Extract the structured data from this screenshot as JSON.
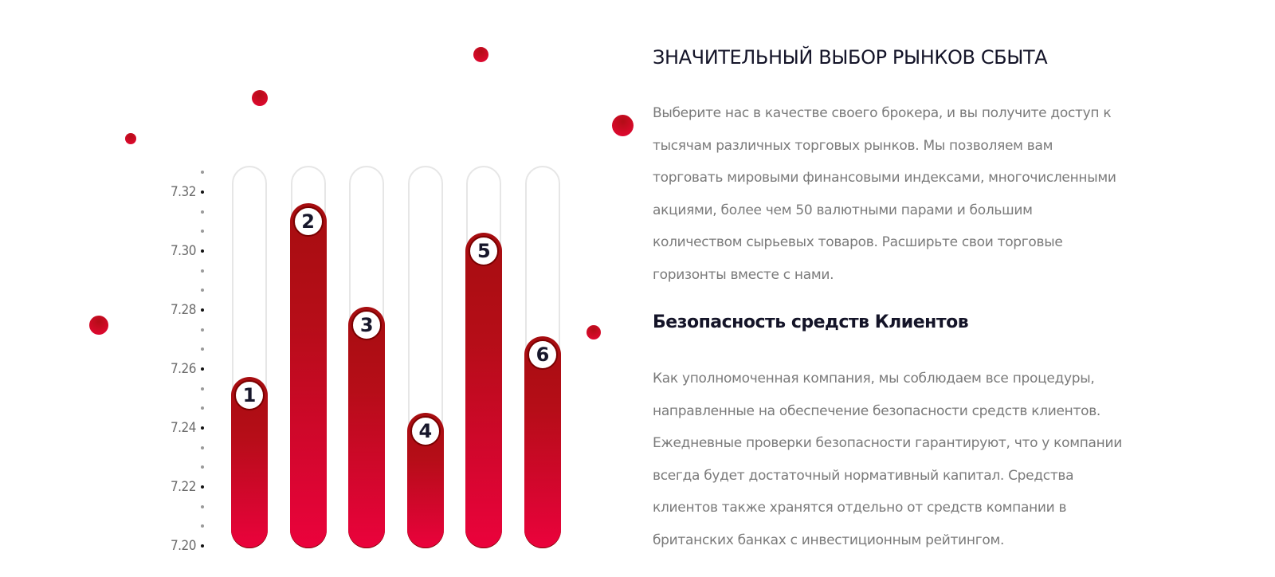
{
  "chart_data": {
    "type": "bar",
    "title": "",
    "xlabel": "",
    "ylabel": "",
    "categories": [
      "1",
      "2",
      "3",
      "4",
      "5",
      "6"
    ],
    "values": [
      7.251,
      7.31,
      7.275,
      7.239,
      7.3,
      7.265
    ],
    "ylim": [
      7.2,
      7.33
    ],
    "y_ticks": [
      "7.32",
      "7.30",
      "7.28",
      "7.26",
      "7.24",
      "7.22",
      "7.20"
    ],
    "grid": false,
    "legend": null,
    "bar_style": "rounded pill bars with red gradient inside light grey pill tracks; numbered circular badge on top of each bar"
  },
  "colors": {
    "accent_red": "#d40a28",
    "accent_dark_red": "#a60d10",
    "heading": "#141428",
    "body_text": "#7a7a7a",
    "track_border": "#e6e6e6"
  },
  "content": {
    "section1": {
      "title": "ЗНАЧИТЕЛЬНЫЙ ВЫБОР РЫНКОВ СБЫТА",
      "lines": [
        "Выберите нас в качестве своего брокера, и вы получите доступ к",
        "тысячам различных торговых рынков. Мы позволяем вам",
        "торговать мировыми финансовыми индексами, многочисленными",
        "акциями, более чем 50 валютными парами и большим",
        "количеством сырьевых товаров. Расширьте свои торговые",
        "горизонты вместе с нами."
      ]
    },
    "section2": {
      "title": "Безопасность средств Клиентов",
      "lines": [
        "Как уполномоченная компания, мы соблюдаем все процедуры,",
        "направленные на обеспечение безопасности средств клиентов.",
        "Ежедневные проверки безопасности гарантируют, что у компании",
        "всегда будет достаточный нормативный капитал. Средства",
        "клиентов также хранятся отдельно от средств компании в",
        "британских банках с инвестиционным рейтингом."
      ]
    }
  }
}
